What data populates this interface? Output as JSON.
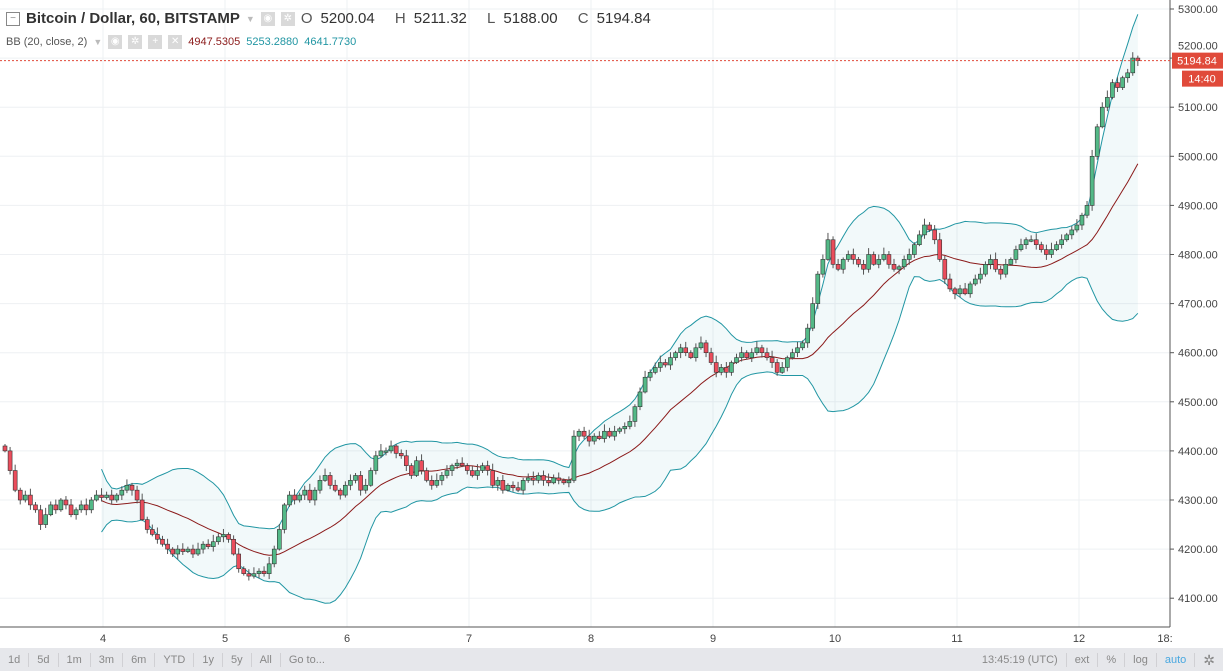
{
  "header": {
    "symbol": "Bitcoin / Dollar, 60, BITSTAMP",
    "o_label": "O",
    "o": "5200.04",
    "h_label": "H",
    "h": "5211.32",
    "l_label": "L",
    "l": "5188.00",
    "c_label": "C",
    "c": "5194.84"
  },
  "indicator": {
    "name": "BB (20, close, 2)",
    "basis": "4947.5305",
    "upper": "5253.2880",
    "lower": "4641.7730"
  },
  "price_label": {
    "value": "5194.84",
    "countdown": "14:40"
  },
  "toolbar": {
    "ranges": [
      "1d",
      "5d",
      "1m",
      "3m",
      "6m",
      "YTD",
      "1y",
      "5y",
      "All",
      "Go to..."
    ],
    "time": "13:45:19 (UTC)",
    "ext": "ext",
    "pct": "%",
    "log": "log",
    "auto": "auto"
  },
  "colors": {
    "up": "#53b987",
    "down": "#eb4d5c",
    "band": "#2196a3",
    "basis": "#8b1a1a",
    "last": "#e04a3a"
  },
  "chart_data": {
    "type": "candlestick",
    "title": "Bitcoin / Dollar, 60, BITSTAMP",
    "ylim": [
      4080,
      5320
    ],
    "y_ticks": [
      "4100.00",
      "4200.00",
      "4300.00",
      "4400.00",
      "4500.00",
      "4600.00",
      "4700.00",
      "4800.00",
      "4900.00",
      "5000.00",
      "5100.00",
      "5200.00",
      "5300.00"
    ],
    "x_ticks": [
      "4",
      "5",
      "6",
      "7",
      "8",
      "9",
      "10",
      "11",
      "12",
      "18:"
    ],
    "first_open": 4410,
    "closes": [
      4400,
      4360,
      4320,
      4300,
      4310,
      4290,
      4280,
      4250,
      4270,
      4290,
      4280,
      4300,
      4290,
      4270,
      4280,
      4290,
      4280,
      4300,
      4310,
      4305,
      4310,
      4300,
      4310,
      4320,
      4330,
      4320,
      4300,
      4260,
      4240,
      4230,
      4220,
      4210,
      4200,
      4190,
      4200,
      4195,
      4200,
      4190,
      4200,
      4210,
      4205,
      4215,
      4225,
      4230,
      4220,
      4190,
      4160,
      4150,
      4145,
      4150,
      4155,
      4150,
      4170,
      4200,
      4240,
      4290,
      4310,
      4300,
      4310,
      4320,
      4300,
      4320,
      4340,
      4350,
      4330,
      4320,
      4310,
      4330,
      4340,
      4350,
      4320,
      4330,
      4360,
      4390,
      4400,
      4400,
      4410,
      4395,
      4390,
      4370,
      4350,
      4380,
      4360,
      4340,
      4330,
      4340,
      4350,
      4360,
      4370,
      4375,
      4370,
      4360,
      4350,
      4360,
      4370,
      4360,
      4330,
      4340,
      4320,
      4330,
      4325,
      4320,
      4340,
      4345,
      4340,
      4350,
      4340,
      4335,
      4345,
      4340,
      4335,
      4340,
      4430,
      4440,
      4430,
      4420,
      4430,
      4425,
      4440,
      4430,
      4440,
      4445,
      4450,
      4460,
      4490,
      4520,
      4550,
      4560,
      4570,
      4580,
      4575,
      4590,
      4600,
      4610,
      4600,
      4590,
      4610,
      4620,
      4600,
      4580,
      4560,
      4570,
      4560,
      4580,
      4590,
      4600,
      4590,
      4600,
      4610,
      4600,
      4590,
      4580,
      4560,
      4570,
      4590,
      4600,
      4610,
      4620,
      4650,
      4700,
      4760,
      4790,
      4830,
      4780,
      4770,
      4790,
      4800,
      4790,
      4780,
      4770,
      4800,
      4780,
      4790,
      4800,
      4780,
      4770,
      4775,
      4790,
      4800,
      4820,
      4840,
      4860,
      4850,
      4830,
      4790,
      4750,
      4730,
      4720,
      4730,
      4720,
      4740,
      4750,
      4760,
      4780,
      4790,
      4770,
      4760,
      4780,
      4790,
      4810,
      4820,
      4830,
      4830,
      4820,
      4810,
      4800,
      4810,
      4820,
      4830,
      4840,
      4850,
      4860,
      4880,
      4900,
      5000,
      5060,
      5100,
      5120,
      5150,
      5140,
      5160,
      5170,
      5200.04,
      5194.84
    ],
    "indicator": {
      "type": "bollinger",
      "length": 20,
      "source": "close",
      "mult": 2
    }
  }
}
